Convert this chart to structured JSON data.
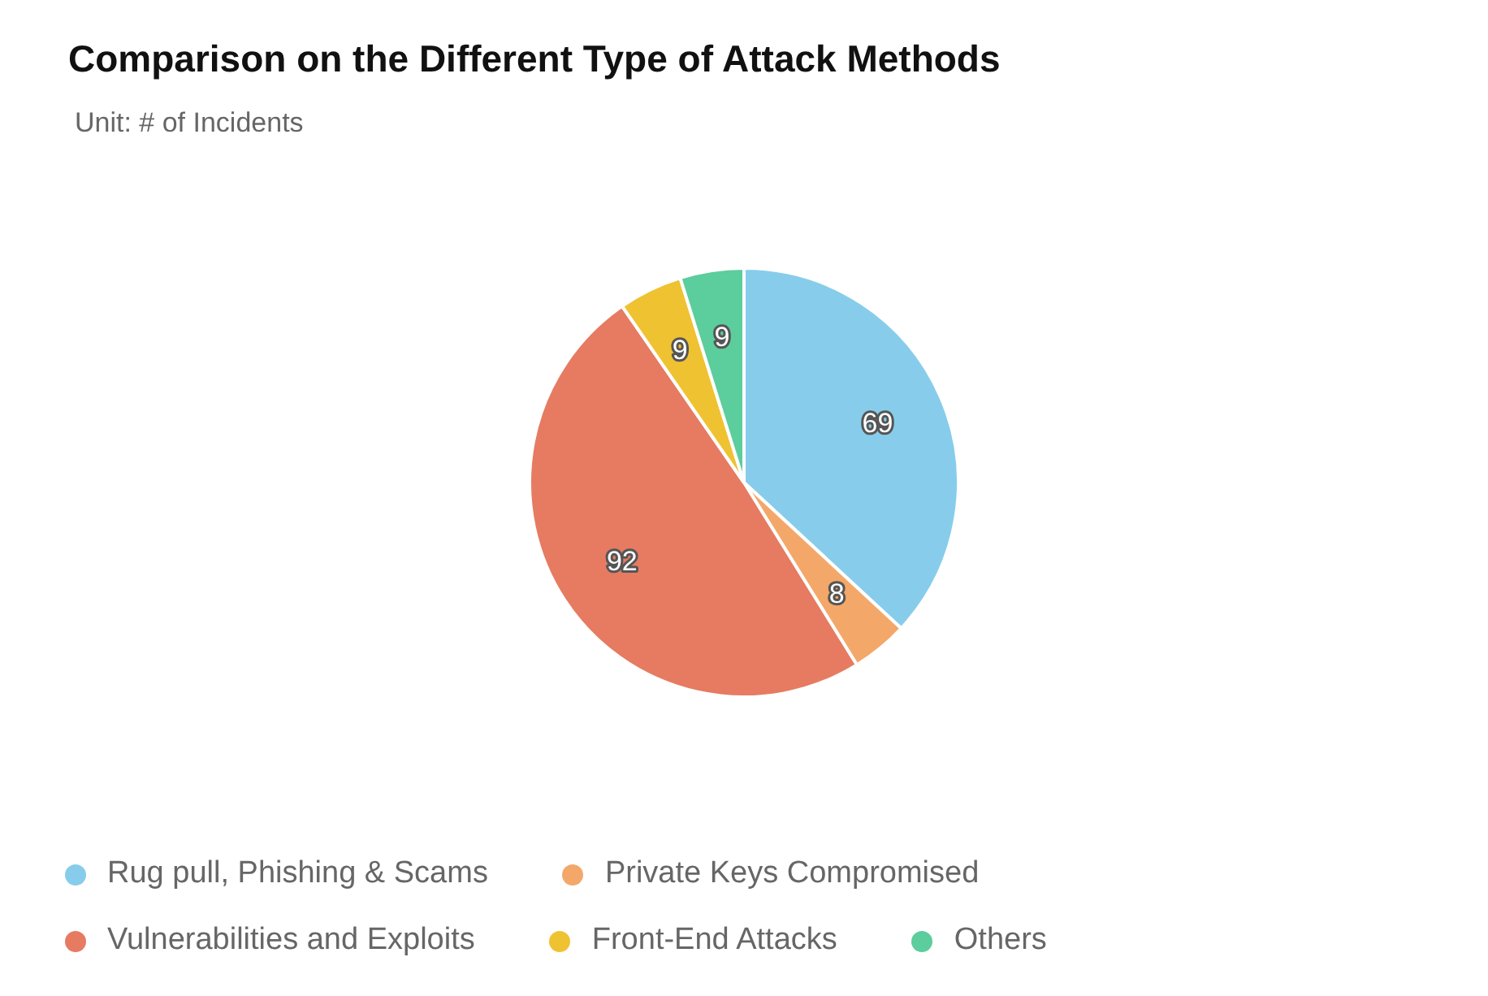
{
  "chart_data": {
    "type": "pie",
    "title": "Comparison on the Different Type of Attack Methods",
    "subtitle": "Unit: # of Incidents",
    "categories": [
      "Rug pull, Phishing & Scams",
      "Private Keys Compromised",
      "Vulnerabilities and Exploits",
      "Front-End Attacks",
      "Others"
    ],
    "values": [
      69,
      8,
      92,
      9,
      9
    ],
    "colors": [
      "#87cdeb",
      "#f3a86a",
      "#e67b62",
      "#efc232",
      "#5ccd9c"
    ],
    "data_labels": true,
    "legend": "bottom left"
  }
}
